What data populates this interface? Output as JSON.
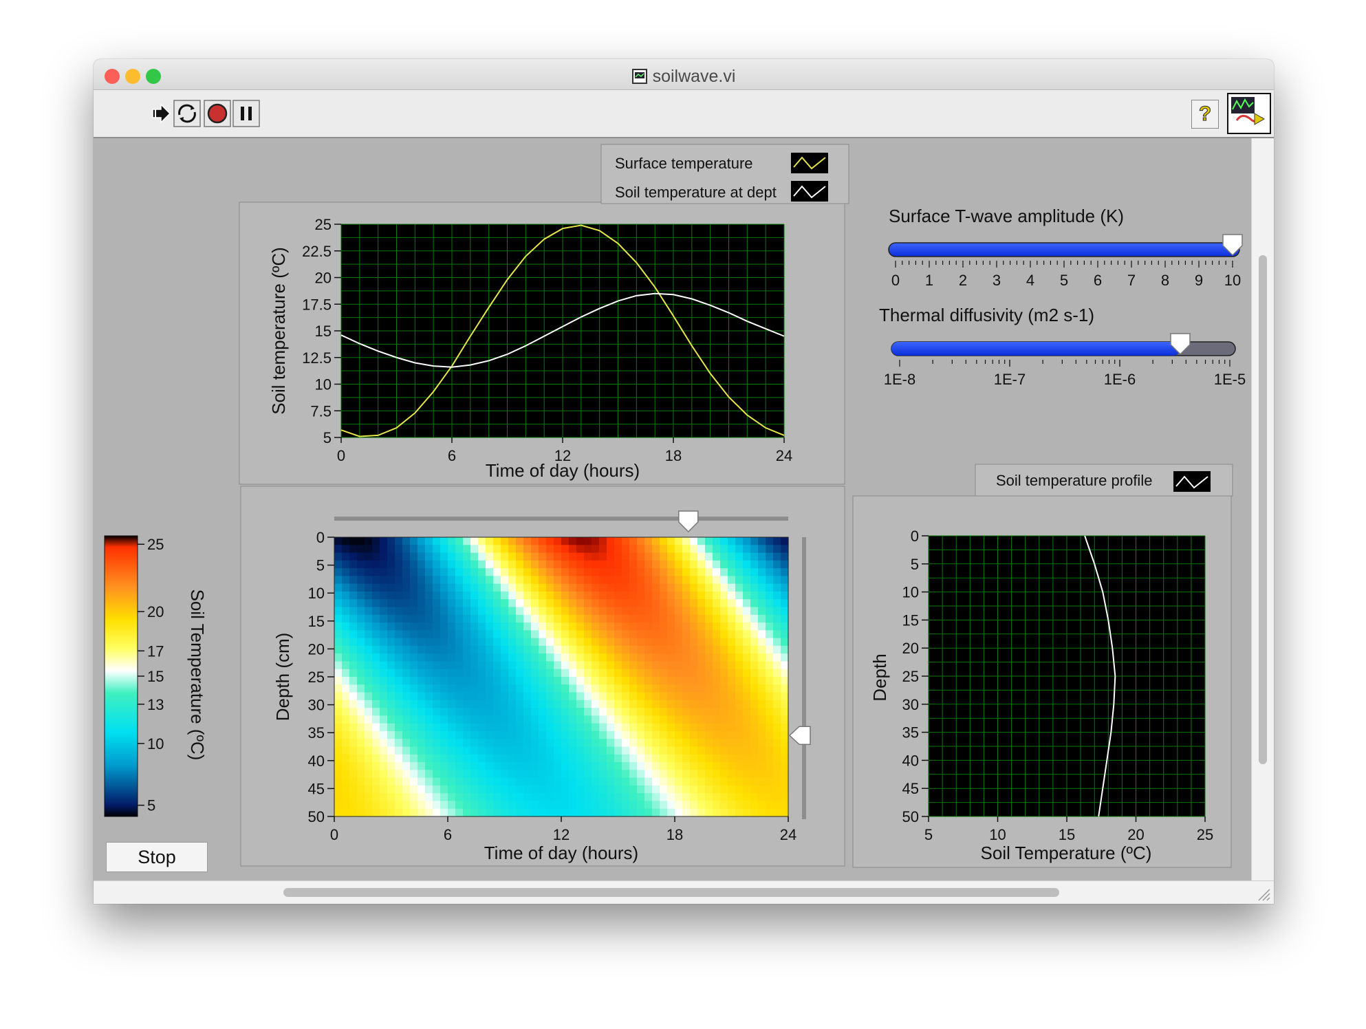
{
  "window": {
    "title": "soilwave.vi",
    "traffic_lights": {
      "close": "#fc5f57",
      "minimize": "#fdbc2e",
      "zoom": "#33c748"
    }
  },
  "toolbar": {
    "buttons": [
      "run-arrow-icon",
      "run-continuously-icon",
      "abort-icon",
      "pause-icon"
    ],
    "help_label": "?"
  },
  "time_chart": {
    "legend": [
      "Surface temperature",
      "Soil temperature at dept"
    ],
    "ylabel": "Soil temperature (ºC)",
    "xlabel": "Time of day (hours)",
    "y_ticks": [
      "25",
      "22.5",
      "20",
      "17.5",
      "15",
      "12.5",
      "10",
      "7.5",
      "5"
    ],
    "x_ticks": [
      "0",
      "6",
      "12",
      "18",
      "24"
    ]
  },
  "amplitude_slider": {
    "label": "Surface T-wave amplitude (K)",
    "ticks": [
      "0",
      "1",
      "2",
      "3",
      "4",
      "5",
      "6",
      "7",
      "8",
      "9",
      "10"
    ],
    "value": 10
  },
  "diffusivity_slider": {
    "label": "Thermal diffusivity (m2 s-1)",
    "ticks": [
      "1E-8",
      "1E-7",
      "1E-6",
      "1E-5"
    ],
    "value_fraction": 0.85
  },
  "colorbar": {
    "label": "Soil Temperature (ºC)",
    "ticks": [
      "25",
      "20",
      "17",
      "15",
      "13",
      "10",
      "5"
    ]
  },
  "heatmap": {
    "ylabel": "Depth (cm)",
    "xlabel": "Time of day (hours)",
    "y_ticks": [
      "0",
      "5",
      "10",
      "15",
      "20",
      "25",
      "30",
      "35",
      "40",
      "45",
      "50"
    ],
    "x_ticks": [
      "0",
      "6",
      "12",
      "18",
      "24"
    ],
    "time_cursor_fraction": 0.78,
    "depth_cursor_fraction": 0.71
  },
  "profile_chart": {
    "legend": [
      "Soil temperature profile"
    ],
    "ylabel": "Depth",
    "xlabel": "Soil Temperature (ºC)",
    "y_ticks": [
      "0",
      "5",
      "10",
      "15",
      "20",
      "25",
      "30",
      "35",
      "40",
      "45",
      "50"
    ],
    "x_ticks": [
      "5",
      "10",
      "15",
      "20",
      "25"
    ]
  },
  "stop_button": {
    "label": "Stop"
  },
  "chart_data": [
    {
      "type": "line",
      "x": [
        0,
        1,
        2,
        3,
        4,
        5,
        6,
        7,
        8,
        9,
        10,
        11,
        12,
        13,
        14,
        15,
        16,
        17,
        18,
        19,
        20,
        21,
        22,
        23,
        24
      ],
      "series": [
        {
          "name": "Surface temperature",
          "color": "#e6e64a",
          "values": [
            5.7,
            5.1,
            5.2,
            5.9,
            7.3,
            9.3,
            11.7,
            14.5,
            17.2,
            19.8,
            22.0,
            23.6,
            24.6,
            24.9,
            24.4,
            23.2,
            21.4,
            19.1,
            16.4,
            13.6,
            11.0,
            8.8,
            7.1,
            5.9,
            5.2
          ]
        },
        {
          "name": "Soil temperature at dept",
          "color": "#ffffff",
          "values": [
            14.6,
            13.8,
            13.1,
            12.5,
            12.0,
            11.7,
            11.6,
            11.8,
            12.2,
            12.8,
            13.6,
            14.5,
            15.4,
            16.3,
            17.1,
            17.8,
            18.3,
            18.5,
            18.4,
            18.0,
            17.4,
            16.7,
            15.9,
            15.2,
            14.5
          ]
        }
      ],
      "xlabel": "Time of day (hours)",
      "ylabel": "Soil temperature (ºC)",
      "xlim": [
        0,
        24
      ],
      "ylim": [
        5,
        25
      ],
      "grid": true
    },
    {
      "type": "line",
      "series": [
        {
          "name": "Soil temperature profile",
          "color": "#ffffff",
          "temperature": [
            16.3,
            17.0,
            17.6,
            18.0,
            18.3,
            18.5,
            18.4,
            18.2,
            17.9,
            17.6,
            17.3
          ],
          "depth": [
            0,
            5,
            10,
            15,
            20,
            25,
            30,
            35,
            40,
            45,
            50
          ]
        }
      ],
      "xlabel": "Soil Temperature (ºC)",
      "ylabel": "Depth",
      "xlim": [
        5,
        25
      ],
      "ylim": [
        50,
        0
      ],
      "grid": true
    },
    {
      "type": "heatmap",
      "xlabel": "Time of day (hours)",
      "ylabel": "Depth (cm)",
      "xlim": [
        0,
        24
      ],
      "ylim": [
        50,
        0
      ],
      "color_range": [
        5,
        25
      ]
    }
  ]
}
